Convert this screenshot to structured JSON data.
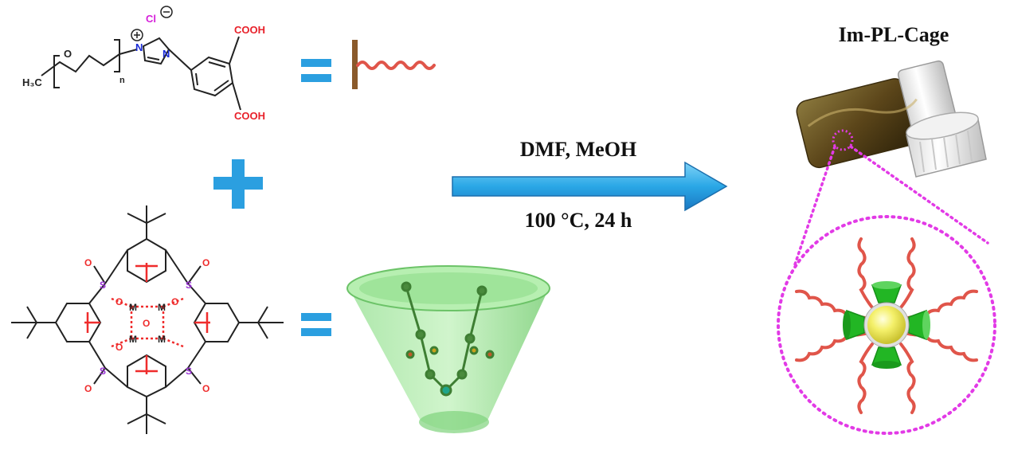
{
  "title": "Im-PL-Cage",
  "conditions": {
    "line1": "DMF, MeOH",
    "line2": "100 °C, 24 h"
  },
  "ligand_labels": {
    "h3c": "H₃C",
    "o": "O",
    "n_sub": "n",
    "n_plus": "N",
    "n_ring": "N",
    "chloride": "Cl",
    "cooh_top": "COOH",
    "cooh_bottom": "COOH"
  },
  "cluster_labels": {
    "s": "S",
    "o": "O",
    "m": "M"
  },
  "colors": {
    "arrow": "#2aa7e6",
    "plus": "#2b9fe0",
    "equals": "#2b9fe0",
    "peg_chain": "#e0554a",
    "stick": "#8a5a2b",
    "cooh": "#e8222b",
    "nitrogen": "#1a2bd6",
    "chloride": "#d51fd9",
    "sulfur": "#9a33d6",
    "cluster_bonds": "#ef2c2c",
    "cage_green": "#7fd37c",
    "dotted_pink": "#e23ae6",
    "sphere_yellow": "#f4f06a",
    "cone_green": "#22b624",
    "vial": "#5a4418"
  }
}
